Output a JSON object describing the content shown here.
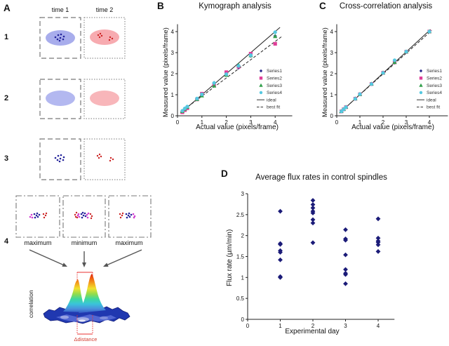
{
  "panel_a": {
    "label": "A",
    "time_labels": [
      "time 1",
      "time 2"
    ],
    "row_numbers": [
      "1",
      "2",
      "3",
      "4"
    ],
    "row4_captions": [
      "maximum",
      "minimum",
      "maximum"
    ],
    "correlation_label": "correlation",
    "distance_label": "Δdistance",
    "colors": {
      "blue_ellipse": "#a8adec",
      "blue_ellipse_light": "#b3b8f0",
      "pink_ellipse": "#f7abb0",
      "pink_ellipse_light": "#f8b6ba",
      "navy_dot": "#22229a",
      "red_dot": "#cc2222",
      "magenta_dot": "#cf3ccf",
      "box_border": "#787878",
      "arrow": "#555555",
      "annotation": "#e83030"
    }
  },
  "chart_data": [
    {
      "panel": "B",
      "type": "scatter",
      "title": "Kymograph analysis",
      "xlabel": "Actual value (pixels/frame)",
      "ylabel": "Measured value (pixels/frame)",
      "xlim": [
        0,
        4.7
      ],
      "ylim": [
        0,
        4.35
      ],
      "xticks": [
        0,
        1,
        2,
        3,
        4
      ],
      "yticks": [
        0,
        1,
        2,
        3,
        4
      ],
      "x": [
        0.2,
        0.3,
        0.4,
        0.8,
        1.0,
        1.5,
        2.0,
        2.5,
        3.0,
        4.0
      ],
      "series": [
        {
          "name": "Series1",
          "marker": "diamond",
          "color": "#26268c",
          "values": [
            0.2,
            0.3,
            0.38,
            0.8,
            1.0,
            1.57,
            1.97,
            2.28,
            2.84,
            3.79
          ]
        },
        {
          "name": "Series2",
          "marker": "square",
          "color": "#df3e98",
          "values": [
            0.17,
            0.27,
            0.36,
            0.78,
            1.05,
            1.46,
            2.07,
            2.33,
            2.95,
            3.42
          ]
        },
        {
          "name": "Series3",
          "marker": "triangle",
          "color": "#33a04c",
          "values": [
            0.22,
            0.33,
            0.42,
            0.79,
            0.96,
            1.43,
            1.94,
            2.42,
            2.87,
            3.78
          ]
        },
        {
          "name": "Series4",
          "marker": "circle",
          "color": "#56c8e0",
          "values": [
            0.24,
            0.35,
            0.44,
            0.82,
            1.02,
            1.56,
            1.98,
            2.37,
            2.88,
            3.97
          ]
        }
      ],
      "lines": [
        {
          "name": "ideal",
          "style": "solid",
          "from": [
            0.12,
            0.12
          ],
          "to": [
            4.2,
            4.2
          ]
        },
        {
          "name": "best fit",
          "style": "dashed",
          "from": [
            0.12,
            0.17
          ],
          "to": [
            4.3,
            3.79
          ]
        }
      ],
      "legend": [
        "Series1",
        "Series2",
        "Series3",
        "Series4",
        "ideal",
        "best fit"
      ]
    },
    {
      "panel": "C",
      "type": "scatter",
      "title": "Cross-correlation analysis",
      "xlabel": "Actual value (pixels/frame)",
      "ylabel": "Measured value (pixels/frame)",
      "xlim": [
        0,
        4.8
      ],
      "ylim": [
        0,
        4.35
      ],
      "xticks": [
        0,
        1,
        2,
        3,
        4
      ],
      "yticks": [
        0,
        1,
        2,
        3,
        4
      ],
      "x": [
        0.2,
        0.3,
        0.4,
        0.8,
        1.0,
        1.5,
        2.0,
        2.5,
        3.0,
        4.0
      ],
      "series": [
        {
          "name": "Series1",
          "marker": "diamond",
          "color": "#26268c",
          "values": [
            0.2,
            0.3,
            0.4,
            0.8,
            1.01,
            1.5,
            2.03,
            2.52,
            3.03,
            3.99
          ]
        },
        {
          "name": "Series2",
          "marker": "square",
          "color": "#df3e98",
          "values": [
            0.21,
            0.31,
            0.41,
            0.81,
            1.02,
            1.51,
            2.04,
            2.54,
            3.04,
            4.0
          ]
        },
        {
          "name": "Series3",
          "marker": "triangle",
          "color": "#33a04c",
          "values": [
            0.22,
            0.32,
            0.42,
            0.82,
            1.03,
            1.52,
            2.05,
            2.55,
            3.05,
            4.01
          ]
        },
        {
          "name": "Series4",
          "marker": "circle",
          "color": "#56c8e0",
          "values": [
            0.21,
            0.31,
            0.41,
            0.81,
            1.03,
            1.51,
            2.04,
            2.64,
            3.05,
            4.0
          ]
        }
      ],
      "lines": [
        {
          "name": "ideal",
          "style": "solid",
          "from": [
            0.12,
            0.12
          ],
          "to": [
            4.05,
            4.1
          ]
        },
        {
          "name": "best fit",
          "style": "dashed",
          "from": [
            0.12,
            0.14
          ],
          "to": [
            4.1,
            4.05
          ]
        }
      ],
      "legend": [
        "Series1",
        "Series2",
        "Series3",
        "Series4",
        "ideal",
        "best fit"
      ]
    },
    {
      "panel": "D",
      "type": "scatter",
      "title": "Average flux rates in control spindles",
      "xlabel": "Experimental day",
      "ylabel": "Flux rate (µm/min)",
      "xlim": [
        0,
        4.5
      ],
      "ylim": [
        0,
        3
      ],
      "xticks": [
        0,
        1,
        2,
        3,
        4
      ],
      "yticks": [
        0,
        0.5,
        1,
        1.5,
        2,
        2.5,
        3
      ],
      "series": [
        {
          "name": "control spindles",
          "marker": "diamond",
          "color": "#1b1b78",
          "points": [
            [
              1,
              2.58
            ],
            [
              1,
              1.81
            ],
            [
              1,
              1.79
            ],
            [
              1,
              1.64
            ],
            [
              1,
              1.6
            ],
            [
              1,
              1.42
            ],
            [
              1,
              1.02
            ],
            [
              1,
              1.0
            ],
            [
              2,
              2.84
            ],
            [
              2,
              2.74
            ],
            [
              2,
              2.66
            ],
            [
              2,
              2.58
            ],
            [
              2,
              2.54
            ],
            [
              2,
              2.38
            ],
            [
              2,
              2.3
            ],
            [
              2,
              1.83
            ],
            [
              3,
              2.14
            ],
            [
              3,
              1.92
            ],
            [
              3,
              1.89
            ],
            [
              3,
              1.54
            ],
            [
              3,
              1.19
            ],
            [
              3,
              1.1
            ],
            [
              3,
              1.07
            ],
            [
              3,
              0.85
            ],
            [
              4,
              2.4
            ],
            [
              4,
              1.94
            ],
            [
              4,
              1.87
            ],
            [
              4,
              1.84
            ],
            [
              4,
              1.78
            ],
            [
              4,
              1.62
            ]
          ]
        }
      ],
      "lines": [],
      "legend": []
    }
  ]
}
